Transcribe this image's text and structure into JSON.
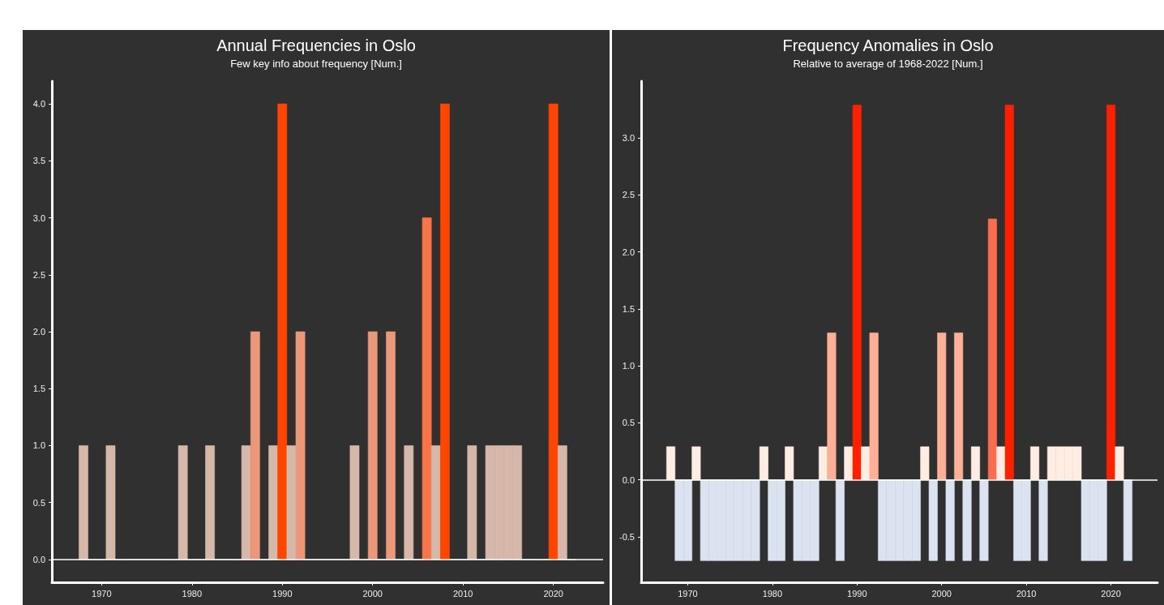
{
  "chart_data": [
    {
      "type": "bar",
      "title": "Annual Frequencies in Oslo",
      "subtitle": "Few key info about frequency [Num.]",
      "x": [
        1968,
        1969,
        1970,
        1971,
        1972,
        1973,
        1974,
        1975,
        1976,
        1977,
        1978,
        1979,
        1980,
        1981,
        1982,
        1983,
        1984,
        1985,
        1986,
        1987,
        1988,
        1989,
        1990,
        1991,
        1992,
        1993,
        1994,
        1995,
        1996,
        1997,
        1998,
        1999,
        2000,
        2001,
        2002,
        2003,
        2004,
        2005,
        2006,
        2007,
        2008,
        2009,
        2010,
        2011,
        2012,
        2013,
        2014,
        2015,
        2016,
        2017,
        2018,
        2019,
        2020,
        2021,
        2022
      ],
      "values": [
        1,
        0,
        0,
        1,
        0,
        0,
        0,
        0,
        0,
        0,
        0,
        1,
        0,
        0,
        1,
        0,
        0,
        0,
        1,
        2,
        0,
        1,
        4,
        1,
        2,
        0,
        0,
        0,
        0,
        0,
        1,
        0,
        2,
        0,
        2,
        0,
        1,
        0,
        3,
        1,
        4,
        0,
        0,
        1,
        0,
        1,
        1,
        1,
        1,
        0,
        0,
        0,
        4,
        1,
        0
      ],
      "colors": [
        "#d6b8ab",
        "#d6b8ab",
        "#d6b8ab",
        "#d6b8ab",
        "#d6b8ab",
        "#d6b8ab",
        "#d6b8ab",
        "#d6b8ab",
        "#d6b8ab",
        "#d6b8ab",
        "#d6b8ab",
        "#d6b8ab",
        "#d6b8ab",
        "#d6b8ab",
        "#d6b8ab",
        "#d6b8ab",
        "#d6b8ab",
        "#d6b8ab",
        "#d6b8ab",
        "#ea977a",
        "#d6b8ab",
        "#d6b8ab",
        "#ff4500",
        "#d6b8ab",
        "#ea977a",
        "#d6b8ab",
        "#d6b8ab",
        "#d6b8ab",
        "#d6b8ab",
        "#d6b8ab",
        "#d6b8ab",
        "#d6b8ab",
        "#ea977a",
        "#d6b8ab",
        "#ea977a",
        "#d6b8ab",
        "#d6b8ab",
        "#d6b8ab",
        "#fa7449",
        "#d6b8ab",
        "#ff4500",
        "#d6b8ab",
        "#d6b8ab",
        "#d6b8ab",
        "#d6b8ab",
        "#d6b8ab",
        "#d6b8ab",
        "#d6b8ab",
        "#d6b8ab",
        "#d6b8ab",
        "#d6b8ab",
        "#d6b8ab",
        "#ff4500",
        "#d6b8ab",
        "#d6b8ab"
      ],
      "xlim": [
        1964.5,
        2025.5
      ],
      "xticks": [
        1970,
        1980,
        1990,
        2000,
        2010,
        2020
      ],
      "ylim": [
        -0.2,
        4.2
      ],
      "yticks": [
        {
          "value": 0,
          "label": "0.0"
        },
        {
          "value": 0.5,
          "label": "0.5"
        },
        {
          "value": 1,
          "label": "1.0"
        },
        {
          "value": 1.5,
          "label": "1.5"
        },
        {
          "value": 2,
          "label": "2.0"
        },
        {
          "value": 2.5,
          "label": "2.5"
        },
        {
          "value": 3,
          "label": "3.0"
        },
        {
          "value": 3.5,
          "label": "3.5"
        },
        {
          "value": 4,
          "label": "4.0"
        }
      ],
      "ref_lines": [
        {
          "axis": "y",
          "value": 0,
          "label": null,
          "color": "#ffffff"
        }
      ],
      "grid": false
    },
    {
      "type": "bar",
      "title": "Frequency Anomalies in Oslo",
      "subtitle": "Relative to average of 1968-2022 [Num.]",
      "x": [
        1968,
        1969,
        1970,
        1971,
        1972,
        1973,
        1974,
        1975,
        1976,
        1977,
        1978,
        1979,
        1980,
        1981,
        1982,
        1983,
        1984,
        1985,
        1986,
        1987,
        1988,
        1989,
        1990,
        1991,
        1992,
        1993,
        1994,
        1995,
        1996,
        1997,
        1998,
        1999,
        2000,
        2001,
        2002,
        2003,
        2004,
        2005,
        2006,
        2007,
        2008,
        2009,
        2010,
        2011,
        2012,
        2013,
        2014,
        2015,
        2016,
        2017,
        2018,
        2019,
        2020,
        2021,
        2022
      ],
      "values": [
        0.29,
        -0.71,
        -0.71,
        0.29,
        -0.71,
        -0.71,
        -0.71,
        -0.71,
        -0.71,
        -0.71,
        -0.71,
        0.29,
        -0.71,
        -0.71,
        0.29,
        -0.71,
        -0.71,
        -0.71,
        0.29,
        1.29,
        -0.71,
        0.29,
        3.29,
        0.29,
        1.29,
        -0.71,
        -0.71,
        -0.71,
        -0.71,
        -0.71,
        0.29,
        -0.71,
        1.29,
        -0.71,
        1.29,
        -0.71,
        0.29,
        -0.71,
        2.29,
        0.29,
        3.29,
        -0.71,
        -0.71,
        0.29,
        -0.71,
        0.29,
        0.29,
        0.29,
        0.29,
        -0.71,
        -0.71,
        -0.71,
        3.29,
        0.29,
        -0.71
      ],
      "colors": [
        "#ffece3",
        "#dae3ef",
        "#dae3ef",
        "#ffece3",
        "#dae3ef",
        "#dae3ef",
        "#dae3ef",
        "#dae3ef",
        "#dae3ef",
        "#dae3ef",
        "#dae3ef",
        "#ffece3",
        "#dae3ef",
        "#dae3ef",
        "#ffece3",
        "#dae3ef",
        "#dae3ef",
        "#dae3ef",
        "#ffece3",
        "#fdb096",
        "#dae3ef",
        "#ffece3",
        "#ff2000",
        "#ffece3",
        "#fdb096",
        "#dae3ef",
        "#dae3ef",
        "#dae3ef",
        "#dae3ef",
        "#dae3ef",
        "#ffece3",
        "#dae3ef",
        "#fdb096",
        "#dae3ef",
        "#fdb096",
        "#dae3ef",
        "#ffece3",
        "#dae3ef",
        "#fb6d50",
        "#ffece3",
        "#ff2000",
        "#dae3ef",
        "#dae3ef",
        "#ffece3",
        "#dae3ef",
        "#ffece3",
        "#ffece3",
        "#ffece3",
        "#ffece3",
        "#dae3ef",
        "#dae3ef",
        "#dae3ef",
        "#ff2000",
        "#ffece3",
        "#dae3ef"
      ],
      "xlim": [
        1964.5,
        2025.5
      ],
      "xticks": [
        1970,
        1980,
        1990,
        2000,
        2010,
        2020
      ],
      "ylim": [
        -0.9,
        3.5
      ],
      "yticks": [
        {
          "value": -0.5,
          "label": "-0.5"
        },
        {
          "value": 0,
          "label": "0.0"
        },
        {
          "value": 0.5,
          "label": "0.5"
        },
        {
          "value": 1,
          "label": "1.0"
        },
        {
          "value": 1.5,
          "label": "1.5"
        },
        {
          "value": 2,
          "label": "2.0"
        },
        {
          "value": 2.5,
          "label": "2.5"
        },
        {
          "value": 3,
          "label": "3.0"
        }
      ],
      "ref_lines": [
        {
          "axis": "y",
          "value": 0,
          "label": null,
          "color": "#ffffff"
        }
      ],
      "grid": false
    }
  ]
}
